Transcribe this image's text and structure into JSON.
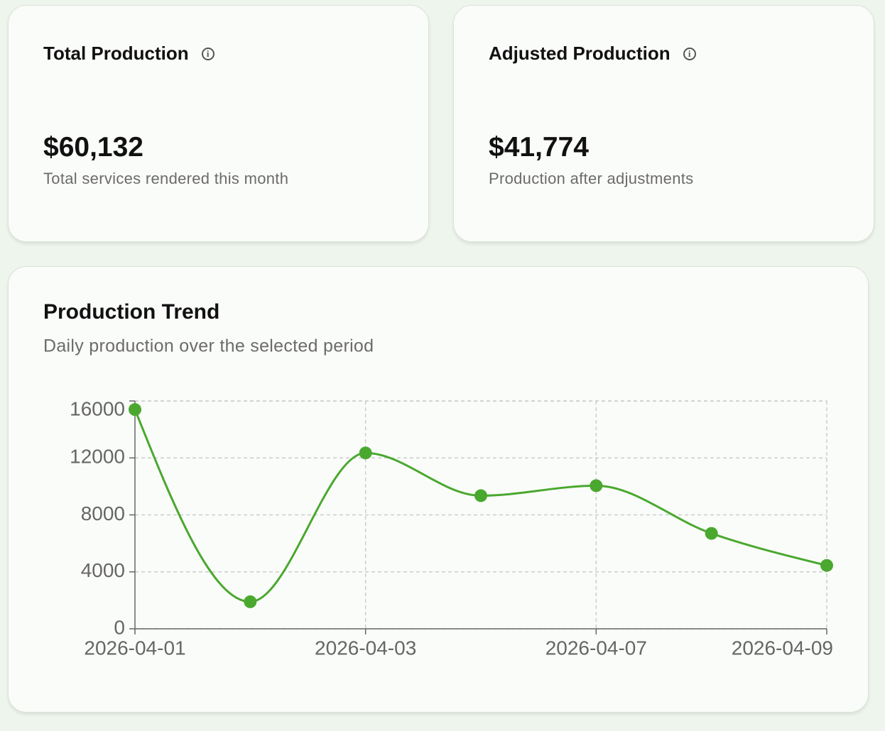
{
  "cards": [
    {
      "title": "Total Production",
      "value": "$60,132",
      "description": "Total services rendered this month"
    },
    {
      "title": "Adjusted Production",
      "value": "$41,774",
      "description": "Production after adjustments"
    }
  ],
  "chart_data": {
    "type": "line",
    "title": "Production Trend",
    "subtitle": "Daily production over the selected period",
    "categories": [
      "2026-04-01",
      null,
      "2026-04-03",
      null,
      "2026-04-07",
      null,
      "2026-04-09"
    ],
    "series": [
      {
        "color": "#4aa82f",
        "values": [
          15400,
          1900,
          12350,
          9350,
          10050,
          6700,
          4450
        ]
      }
    ],
    "ylim": [
      0,
      16000
    ],
    "yticks": [
      0,
      4000,
      8000,
      12000,
      16000
    ],
    "grid": true
  }
}
